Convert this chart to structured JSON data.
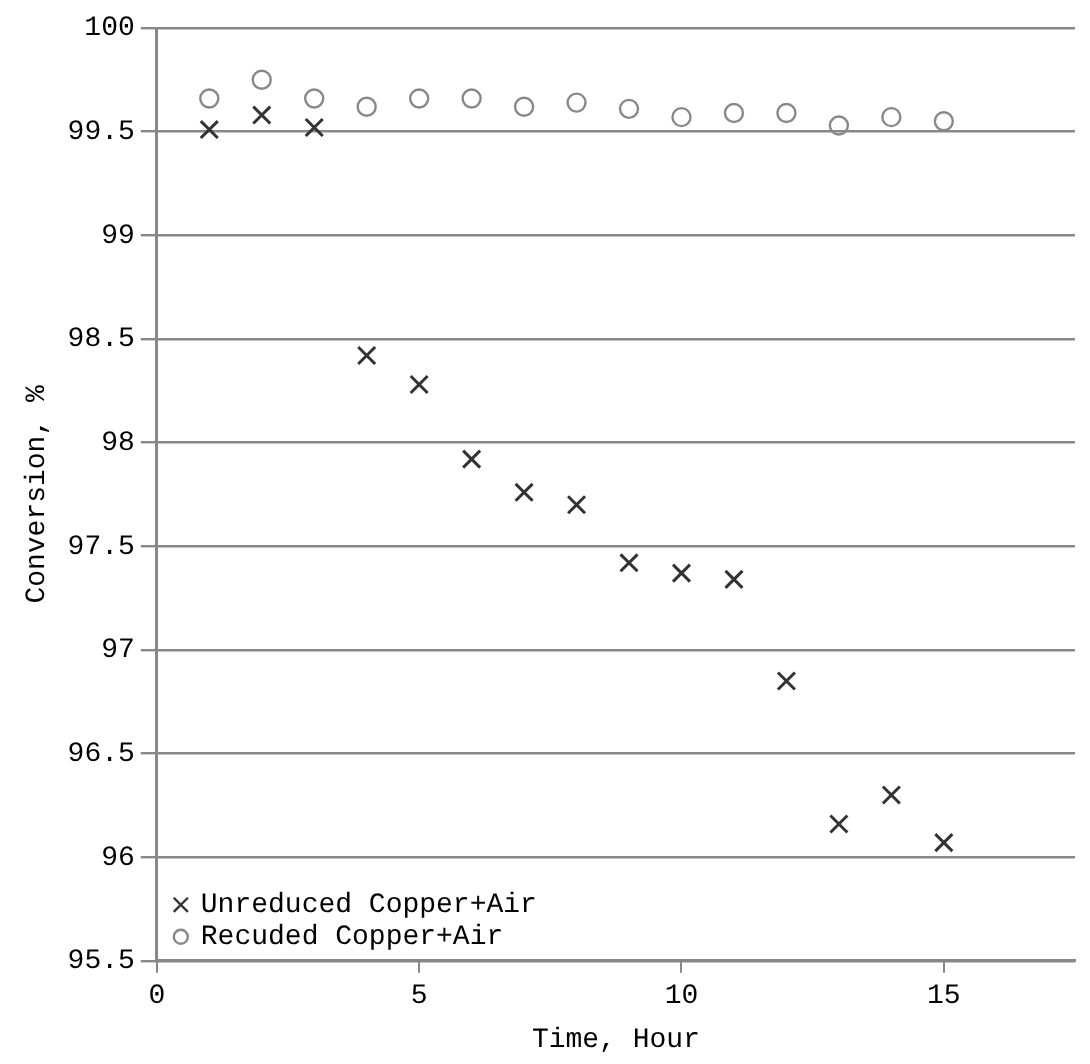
{
  "chart_data": {
    "type": "scatter",
    "xlabel": "Time, Hour",
    "ylabel": "Conversion, %",
    "x": [
      1,
      2,
      3,
      4,
      5,
      6,
      7,
      8,
      9,
      10,
      11,
      12,
      13,
      14,
      15
    ],
    "series": [
      {
        "name": "Unreduced Copper+Air",
        "color": "#333333",
        "marker": "cross",
        "values": [
          99.51,
          99.58,
          99.52,
          98.42,
          98.28,
          97.92,
          97.76,
          97.7,
          97.42,
          97.37,
          97.34,
          96.85,
          96.16,
          96.3,
          96.07
        ]
      },
      {
        "name": "Recuded Copper+Air",
        "color": "#888888",
        "marker": "circle",
        "values": [
          99.66,
          99.75,
          99.66,
          99.62,
          99.66,
          99.66,
          99.62,
          99.64,
          99.61,
          99.57,
          99.59,
          99.59,
          99.53,
          99.57,
          99.55
        ]
      }
    ],
    "xlim": [
      0,
      17.5
    ],
    "xticks": [
      0,
      5,
      10,
      15
    ],
    "ylim": [
      95.5,
      100
    ],
    "yticks": [
      95.5,
      96,
      96.5,
      97,
      97.5,
      98,
      98.5,
      99,
      99.5,
      100
    ],
    "grid": "y",
    "legend": "bottom left"
  }
}
